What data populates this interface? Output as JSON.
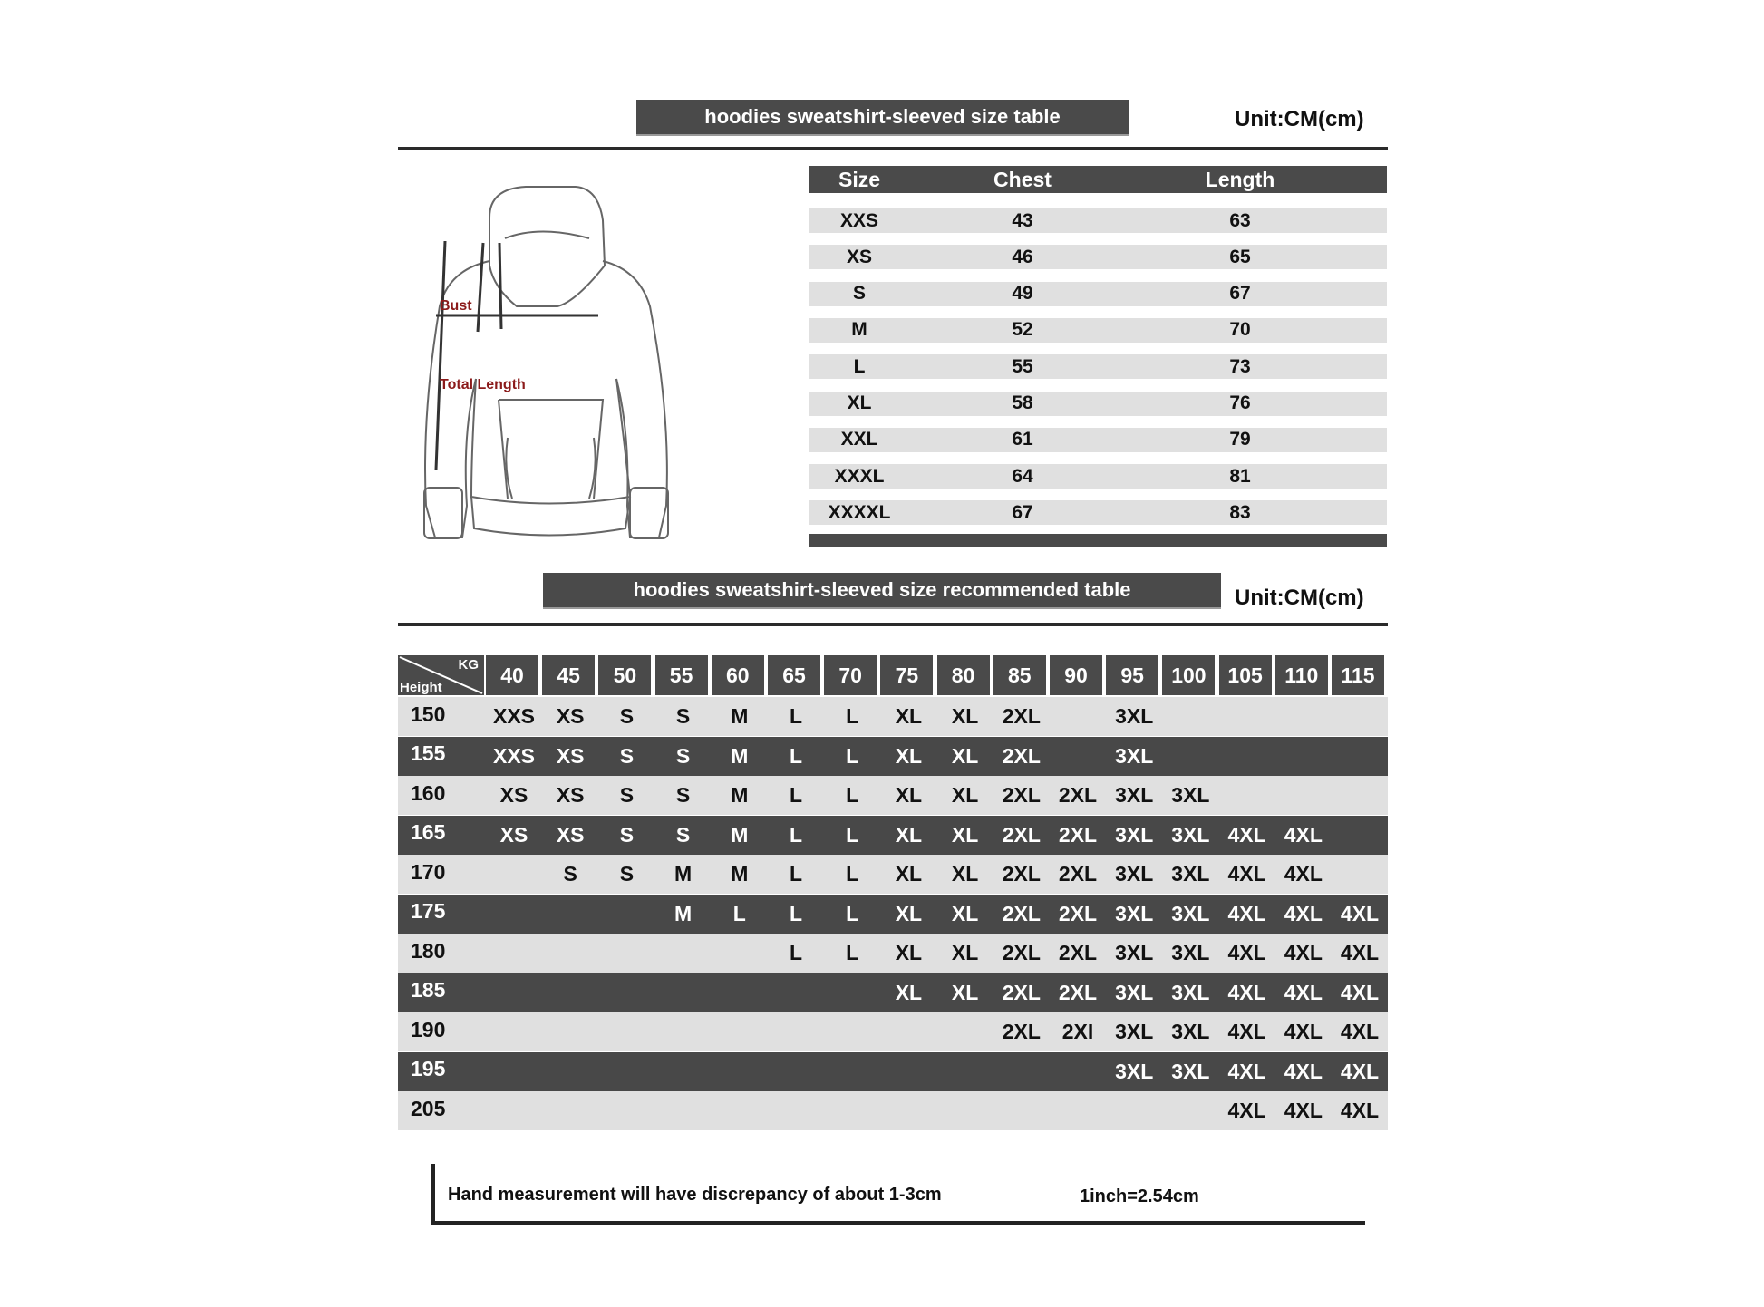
{
  "size_table": {
    "title": "hoodies sweatshirt-sleeved size  table",
    "unit": "Unit:CM(cm)",
    "headers": [
      "Size",
      "Chest",
      "Length"
    ],
    "rows": [
      [
        "XXS",
        "43",
        "63"
      ],
      [
        "XS",
        "46",
        "65"
      ],
      [
        "S",
        "49",
        "67"
      ],
      [
        "M",
        "52",
        "70"
      ],
      [
        "L",
        "55",
        "73"
      ],
      [
        "XL",
        "58",
        "76"
      ],
      [
        "XXL",
        "61",
        "79"
      ],
      [
        "XXXL",
        "64",
        "81"
      ],
      [
        "XXXXL",
        "67",
        "83"
      ]
    ]
  },
  "diagram": {
    "bust_label": "Bust",
    "length_label": "Total Length",
    "label_color": "#8b1a1a"
  },
  "recommended_table": {
    "title": "hoodies sweatshirt-sleeved size recommended table",
    "unit": "Unit:CM(cm)",
    "corner_top": "KG",
    "corner_bottom": "Height",
    "weights": [
      "40",
      "45",
      "50",
      "55",
      "60",
      "65",
      "70",
      "75",
      "80",
      "85",
      "90",
      "95",
      "100",
      "105",
      "110",
      "115"
    ],
    "rows": [
      {
        "height": "150",
        "sizes": [
          "XXS",
          "XS",
          "S",
          "S",
          "M",
          "L",
          "L",
          "XL",
          "XL",
          "2XL",
          "",
          "3XL",
          "",
          "",
          "",
          ""
        ]
      },
      {
        "height": "155",
        "sizes": [
          "XXS",
          "XS",
          "S",
          "S",
          "M",
          "L",
          "L",
          "XL",
          "XL",
          "2XL",
          "",
          "3XL",
          "",
          "",
          "",
          ""
        ]
      },
      {
        "height": "160",
        "sizes": [
          "XS",
          "XS",
          "S",
          "S",
          "M",
          "L",
          "L",
          "XL",
          "XL",
          "2XL",
          "2XL",
          "3XL",
          "3XL",
          "",
          "",
          ""
        ]
      },
      {
        "height": "165",
        "sizes": [
          "XS",
          "XS",
          "S",
          "S",
          "M",
          "L",
          "L",
          "XL",
          "XL",
          "2XL",
          "2XL",
          "3XL",
          "3XL",
          "4XL",
          "4XL",
          ""
        ]
      },
      {
        "height": "170",
        "sizes": [
          "",
          "S",
          "S",
          "M",
          "M",
          "L",
          "L",
          "XL",
          "XL",
          "2XL",
          "2XL",
          "3XL",
          "3XL",
          "4XL",
          "4XL",
          ""
        ]
      },
      {
        "height": "175",
        "sizes": [
          "",
          "",
          "",
          "M",
          "L",
          "L",
          "L",
          "XL",
          "XL",
          "2XL",
          "2XL",
          "3XL",
          "3XL",
          "4XL",
          "4XL",
          "4XL"
        ]
      },
      {
        "height": "180",
        "sizes": [
          "",
          "",
          "",
          "",
          "",
          "L",
          "L",
          "XL",
          "XL",
          "2XL",
          "2XL",
          "3XL",
          "3XL",
          "4XL",
          "4XL",
          "4XL"
        ]
      },
      {
        "height": "185",
        "sizes": [
          "",
          "",
          "",
          "",
          "",
          "",
          "",
          "XL",
          "XL",
          "2XL",
          "2XL",
          "3XL",
          "3XL",
          "4XL",
          "4XL",
          "4XL"
        ]
      },
      {
        "height": "190",
        "sizes": [
          "",
          "",
          "",
          "",
          "",
          "",
          "",
          "",
          "",
          "2XL",
          "2XI",
          "3XL",
          "3XL",
          "4XL",
          "4XL",
          "4XL"
        ]
      },
      {
        "height": "195",
        "sizes": [
          "",
          "",
          "",
          "",
          "",
          "",
          "",
          "",
          "",
          "",
          "",
          "3XL",
          "3XL",
          "4XL",
          "4XL",
          "4XL"
        ]
      },
      {
        "height": "205",
        "sizes": [
          "",
          "",
          "",
          "",
          "",
          "",
          "",
          "",
          "",
          "",
          "",
          "",
          "",
          "4XL",
          "4XL",
          "4XL"
        ]
      }
    ]
  },
  "footer": {
    "note": "Hand measurement will have discrepancy of about  1-3cm",
    "conversion": "1inch=2.54cm"
  },
  "colors": {
    "dark": "#484848",
    "light": "#e0e0e0"
  }
}
